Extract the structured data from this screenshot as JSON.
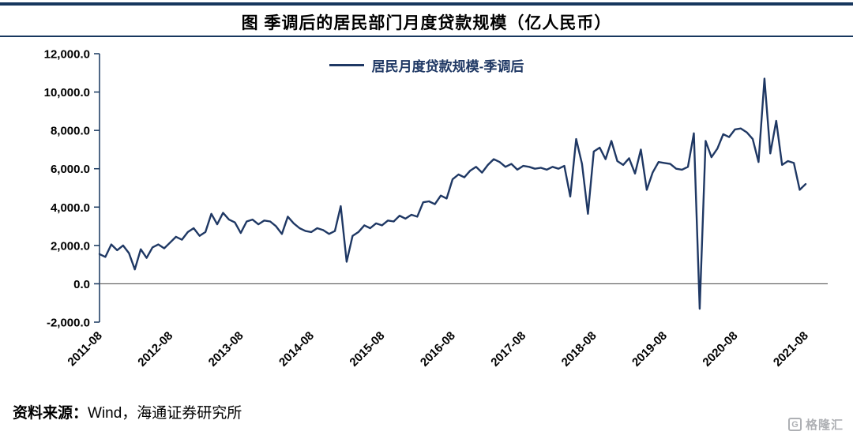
{
  "header": {
    "title": "图 季调后的居民部门月度贷款规模（亿人民币）"
  },
  "legend": {
    "label": "居民月度贷款规模-季调后"
  },
  "footer": {
    "source_label": "资料来源：",
    "source_text": "Wind，海通证券研究所",
    "logo_glyph": "G",
    "logo_text": "格隆汇"
  },
  "colors": {
    "line": "#1F3864",
    "rule": "#17375E",
    "zero_line": "#595959",
    "text": "#000000",
    "logo_gray": "#aeb0b4"
  },
  "chart_data": {
    "type": "line",
    "title": "图 季调后的居民部门月度贷款规模（亿人民币）",
    "series_name": "居民月度贷款规模-季调后",
    "unit": "亿人民币",
    "frequency": "monthly",
    "x_start": "2011-08",
    "x_end": "2021-08",
    "x_tick_labels": [
      "2011-08",
      "2012-08",
      "2013-08",
      "2014-08",
      "2015-08",
      "2016-08",
      "2017-08",
      "2018-08",
      "2019-08",
      "2020-08",
      "2021-08"
    ],
    "x_tick_every_n_points": 12,
    "ylim": [
      -2000,
      12000
    ],
    "y_tick_step": 2000,
    "y_tick_labels": [
      "-2,000.0",
      "0.0",
      "2,000.0",
      "4,000.0",
      "6,000.0",
      "8,000.0",
      "10,000.0",
      "12,000.0"
    ],
    "grid": false,
    "legend_position": "top-center",
    "zero_line": true,
    "values": [
      1550,
      1400,
      2050,
      1750,
      2000,
      1600,
      750,
      1800,
      1350,
      1900,
      2050,
      1850,
      2150,
      2450,
      2300,
      2700,
      2900,
      2500,
      2700,
      3650,
      3100,
      3700,
      3350,
      3200,
      2650,
      3250,
      3350,
      3100,
      3300,
      3250,
      3000,
      2600,
      3500,
      3150,
      2900,
      2750,
      2700,
      2900,
      2800,
      2600,
      2750,
      4050,
      1150,
      2500,
      2700,
      3050,
      2900,
      3150,
      3050,
      3300,
      3250,
      3550,
      3400,
      3600,
      3500,
      4250,
      4300,
      4150,
      4600,
      4450,
      5450,
      5700,
      5550,
      5900,
      6100,
      5800,
      6200,
      6500,
      6350,
      6100,
      6250,
      5950,
      6150,
      6100,
      6000,
      6050,
      5950,
      6100,
      6000,
      6150,
      4550,
      7550,
      6250,
      3650,
      6900,
      7100,
      6500,
      7450,
      6400,
      6200,
      6550,
      5750,
      7000,
      4900,
      5800,
      6350,
      6300,
      6250,
      6000,
      5950,
      6100,
      7850,
      -1300,
      7450,
      6600,
      7050,
      7800,
      7650,
      8050,
      8100,
      7900,
      7550,
      6350,
      10700,
      6800,
      8500,
      6200,
      6400,
      6300,
      4900,
      5200
    ]
  }
}
